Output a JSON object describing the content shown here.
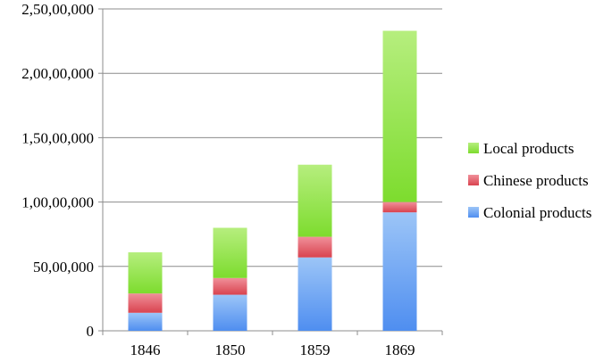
{
  "chart_data": {
    "type": "bar",
    "stacked": true,
    "title": "",
    "xlabel": "",
    "ylabel": "",
    "categories": [
      "1846",
      "1850",
      "1859",
      "1869"
    ],
    "ylim": [
      0,
      25000000
    ],
    "y_ticks": [
      0,
      5000000,
      10000000,
      15000000,
      20000000,
      25000000
    ],
    "y_tick_labels": [
      "0",
      "50,00,000",
      "1,00,00,000",
      "1,50,00,000",
      "2,00,00,000",
      "2,50,00,000"
    ],
    "grid": true,
    "legend_position": "right",
    "series": [
      {
        "name": "Colonial products",
        "values": [
          1400000,
          2800000,
          5700000,
          9200000
        ],
        "color": "#4f8ef0",
        "color_light": "#9cc5f7"
      },
      {
        "name": "Chinese products",
        "values": [
          1500000,
          1300000,
          1600000,
          800000
        ],
        "color": "#d9434f",
        "color_light": "#f0909a"
      },
      {
        "name": "Local products",
        "values": [
          3200000,
          3900000,
          5600000,
          13300000
        ],
        "color": "#7ddc2e",
        "color_light": "#b6ee7e"
      }
    ]
  }
}
